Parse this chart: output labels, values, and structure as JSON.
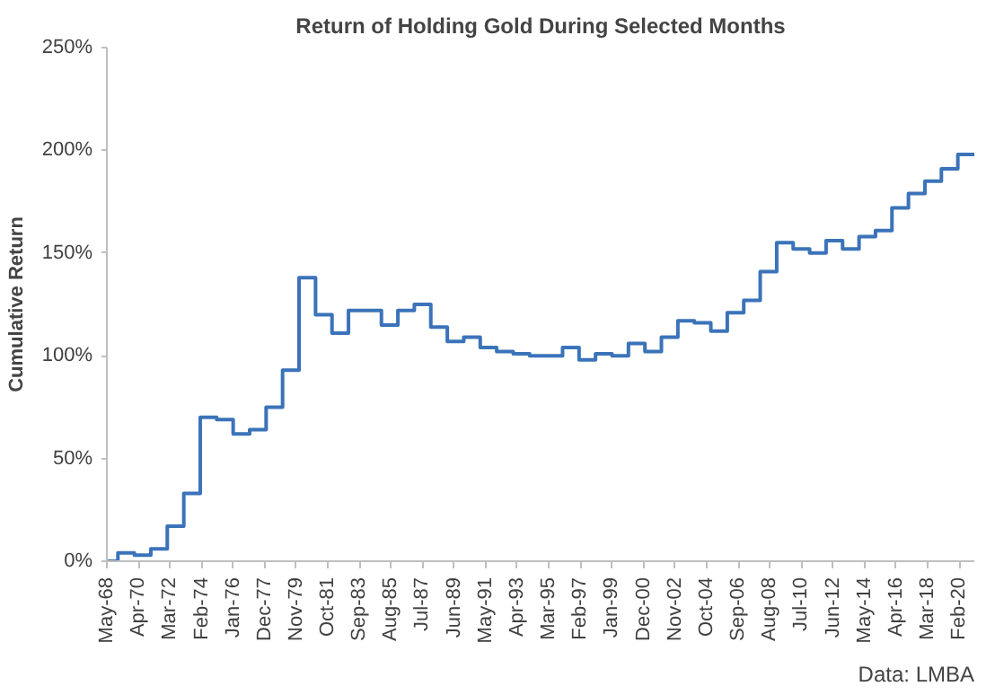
{
  "chart_data": {
    "type": "step",
    "title": "Return of Holding Gold During Selected Months",
    "ylabel": "Cumulative Return",
    "annotations": [
      "Data: LMBA"
    ],
    "x": [
      "1968-05",
      "1969",
      "1970",
      "1971",
      "1972",
      "1973",
      "1974",
      "1975",
      "1976",
      "1977",
      "1978",
      "1979",
      "1980",
      "1981",
      "1982",
      "1983",
      "1984",
      "1985",
      "1986",
      "1987",
      "1988",
      "1989",
      "1990",
      "1991",
      "1992",
      "1993",
      "1994",
      "1995",
      "1996",
      "1997",
      "1998",
      "1999",
      "2000",
      "2001",
      "2002",
      "2003",
      "2004",
      "2005",
      "2006",
      "2007",
      "2008",
      "2009",
      "2010",
      "2011",
      "2012",
      "2013",
      "2014",
      "2015",
      "2016",
      "2017",
      "2018",
      "2019",
      "2020",
      "2021"
    ],
    "series": [
      {
        "color": "#3b73b9",
        "values": [
          0,
          4,
          3,
          6,
          17,
          33,
          70,
          69,
          62,
          64,
          75,
          93,
          138,
          120,
          111,
          122,
          122,
          115,
          122,
          125,
          114,
          107,
          109,
          104,
          102,
          101,
          100,
          100,
          104,
          98,
          101,
          100,
          106,
          102,
          109,
          117,
          116,
          112,
          121,
          127,
          141,
          155,
          152,
          150,
          156,
          152,
          158,
          161,
          172,
          179,
          185,
          191,
          198,
          198
        ]
      }
    ],
    "xlim": [
      "1968-05",
      "2021-01"
    ],
    "xticks": [
      {
        "value": "1968-05",
        "label": "May-68"
      },
      {
        "value": "1970-04",
        "label": "Apr-70"
      },
      {
        "value": "1972-03",
        "label": "Mar-72"
      },
      {
        "value": "1974-02",
        "label": "Feb-74"
      },
      {
        "value": "1976-01",
        "label": "Jan-76"
      },
      {
        "value": "1977-12",
        "label": "Dec-77"
      },
      {
        "value": "1979-11",
        "label": "Nov-79"
      },
      {
        "value": "1981-10",
        "label": "Oct-81"
      },
      {
        "value": "1983-09",
        "label": "Sep-83"
      },
      {
        "value": "1985-08",
        "label": "Aug-85"
      },
      {
        "value": "1987-07",
        "label": "Jul-87"
      },
      {
        "value": "1989-06",
        "label": "Jun-89"
      },
      {
        "value": "1991-05",
        "label": "May-91"
      },
      {
        "value": "1993-04",
        "label": "Apr-93"
      },
      {
        "value": "1995-03",
        "label": "Mar-95"
      },
      {
        "value": "1997-02",
        "label": "Feb-97"
      },
      {
        "value": "1999-01",
        "label": "Jan-99"
      },
      {
        "value": "2000-12",
        "label": "Dec-00"
      },
      {
        "value": "2002-11",
        "label": "Nov-02"
      },
      {
        "value": "2004-10",
        "label": "Oct-04"
      },
      {
        "value": "2006-09",
        "label": "Sep-06"
      },
      {
        "value": "2008-08",
        "label": "Aug-08"
      },
      {
        "value": "2010-07",
        "label": "Jul-10"
      },
      {
        "value": "2012-06",
        "label": "Jun-12"
      },
      {
        "value": "2014-05",
        "label": "May-14"
      },
      {
        "value": "2016-04",
        "label": "Apr-16"
      },
      {
        "value": "2018-03",
        "label": "Mar-18"
      },
      {
        "value": "2020-02",
        "label": "Feb-20"
      }
    ],
    "ylim": [
      0,
      250
    ],
    "yticks": [
      {
        "value": 0,
        "label": "0%"
      },
      {
        "value": 50,
        "label": "50%"
      },
      {
        "value": 100,
        "label": "100%"
      },
      {
        "value": 150,
        "label": "150%"
      },
      {
        "value": 200,
        "label": "200%"
      },
      {
        "value": 250,
        "label": "250%"
      }
    ],
    "grid": false
  }
}
